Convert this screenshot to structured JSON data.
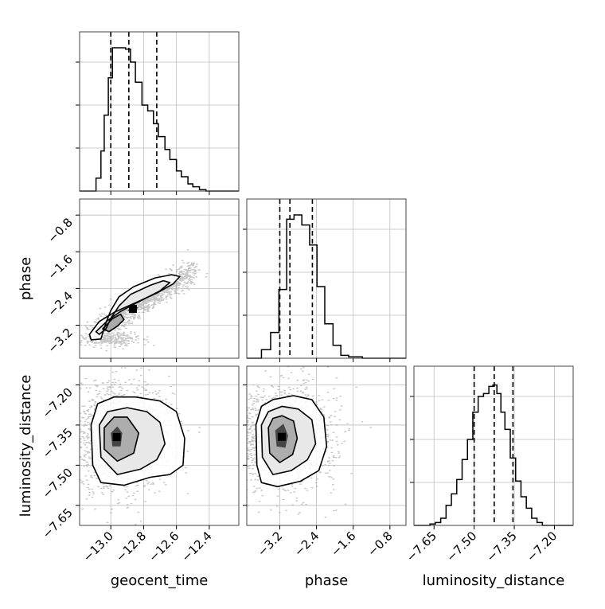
{
  "chart_data": {
    "type": "corner",
    "parameters": [
      "geocent_time",
      "phase",
      "luminosity_distance"
    ],
    "axis_labels": {
      "x": [
        "geocent_time",
        "phase",
        "luminosity_distance"
      ],
      "y": [
        "phase",
        "luminosity_distance"
      ]
    },
    "ranges": {
      "geocent_time": [
        -13.19,
        -12.22
      ],
      "phase": [
        -3.92,
        -0.45
      ],
      "luminosity_distance": [
        -7.725,
        -7.13
      ]
    },
    "ticks": {
      "geocent_time": {
        "values": [
          -13.0,
          -12.8,
          -12.6,
          -12.4
        ],
        "labels": [
          "−13.0",
          "−12.8",
          "−12.6",
          "−12.4"
        ]
      },
      "phase": {
        "values": [
          -3.2,
          -2.4,
          -1.6,
          -0.8
        ],
        "labels": [
          "−3.2",
          "−2.4",
          "−1.6",
          "−0.8"
        ]
      },
      "luminosity_distance": {
        "values": [
          -7.65,
          -7.5,
          -7.35,
          -7.2
        ],
        "labels": [
          "−7.65",
          "−7.50",
          "−7.35",
          "−7.20"
        ]
      }
    },
    "quantiles": {
      "geocent_time": [
        -13.0,
        -12.89,
        -12.72
      ],
      "phase": [
        -3.2,
        -2.98,
        -2.49
      ],
      "luminosity_distance": [
        -7.5,
        -7.425,
        -7.355
      ]
    },
    "histograms": {
      "geocent_time": {
        "bin_edges": [
          -13.19,
          -13.09,
          -13.06,
          -13.04,
          -13.015,
          -12.99,
          -12.96,
          -12.91,
          -12.88,
          -12.85,
          -12.81,
          -12.775,
          -12.74,
          -12.71,
          -12.67,
          -12.64,
          -12.6,
          -12.57,
          -12.53,
          -12.5,
          -12.46,
          -12.42,
          -12.22
        ],
        "heights": [
          0.0,
          0.09,
          0.28,
          0.53,
          0.79,
          1.0,
          1.0,
          0.99,
          0.9,
          0.76,
          0.6,
          0.56,
          0.47,
          0.38,
          0.29,
          0.22,
          0.14,
          0.1,
          0.05,
          0.03,
          0.01,
          0.0
        ]
      },
      "phase": {
        "bin_edges": [
          -3.92,
          -3.6,
          -3.4,
          -3.22,
          -3.05,
          -2.89,
          -2.72,
          -2.55,
          -2.39,
          -2.22,
          -2.04,
          -1.87,
          -1.7,
          -1.4,
          -0.45
        ],
        "heights": [
          0.0,
          0.06,
          0.18,
          0.48,
          0.97,
          1.0,
          0.93,
          0.79,
          0.5,
          0.24,
          0.09,
          0.02,
          0.01,
          0.0
        ]
      },
      "luminosity_distance": {
        "bin_edges": [
          -7.725,
          -7.665,
          -7.645,
          -7.625,
          -7.605,
          -7.585,
          -7.565,
          -7.545,
          -7.525,
          -7.505,
          -7.485,
          -7.465,
          -7.445,
          -7.43,
          -7.415,
          -7.4,
          -7.385,
          -7.365,
          -7.345,
          -7.325,
          -7.305,
          -7.285,
          -7.265,
          -7.245,
          -7.13
        ],
        "heights": [
          0.0,
          0.01,
          0.02,
          0.05,
          0.14,
          0.22,
          0.32,
          0.46,
          0.6,
          0.79,
          0.9,
          0.92,
          0.97,
          0.98,
          0.92,
          0.79,
          0.67,
          0.47,
          0.31,
          0.2,
          0.12,
          0.05,
          0.02,
          0.0
        ]
      }
    },
    "density_pairs": [
      {
        "x": "geocent_time",
        "y": "phase",
        "contours": [
          [
            [
              -13.13,
              -3.4
            ],
            [
              -13.07,
              -3.12
            ],
            [
              -12.98,
              -2.92
            ],
            [
              -12.85,
              -2.71
            ],
            [
              -12.72,
              -2.5
            ],
            [
              -12.62,
              -2.3
            ],
            [
              -12.58,
              -2.14
            ],
            [
              -12.63,
              -2.1
            ],
            [
              -12.73,
              -2.17
            ],
            [
              -12.86,
              -2.36
            ],
            [
              -12.95,
              -2.58
            ],
            [
              -13.0,
              -2.88
            ],
            [
              -13.03,
              -3.15
            ],
            [
              -13.06,
              -3.5
            ],
            [
              -13.12,
              -3.52
            ]
          ],
          [
            [
              -13.09,
              -3.34
            ],
            [
              -13.02,
              -3.1
            ],
            [
              -12.94,
              -2.9
            ],
            [
              -12.82,
              -2.67
            ],
            [
              -12.7,
              -2.45
            ],
            [
              -12.64,
              -2.27
            ],
            [
              -12.68,
              -2.23
            ],
            [
              -12.76,
              -2.33
            ],
            [
              -12.88,
              -2.53
            ],
            [
              -12.95,
              -2.78
            ],
            [
              -13.0,
              -3.05
            ],
            [
              -13.03,
              -3.28
            ],
            [
              -13.07,
              -3.4
            ]
          ],
          [
            [
              -13.05,
              -3.28
            ],
            [
              -12.99,
              -3.06
            ],
            [
              -12.94,
              -2.96
            ],
            [
              -12.92,
              -3.08
            ],
            [
              -12.96,
              -3.22
            ],
            [
              -13.01,
              -3.34
            ]
          ],
          [
            [
              -12.9,
              -2.88
            ],
            [
              -12.87,
              -2.79
            ],
            [
              -12.83,
              -2.81
            ],
            [
              -12.86,
              -2.9
            ]
          ]
        ]
      },
      {
        "x": "geocent_time",
        "y": "luminosity_distance",
        "contours": [
          [
            [
              -13.12,
              -7.35
            ],
            [
              -13.11,
              -7.5
            ],
            [
              -13.06,
              -7.565
            ],
            [
              -12.92,
              -7.575
            ],
            [
              -12.76,
              -7.545
            ],
            [
              -12.64,
              -7.535
            ],
            [
              -12.56,
              -7.5
            ],
            [
              -12.55,
              -7.4
            ],
            [
              -12.6,
              -7.3
            ],
            [
              -12.7,
              -7.26
            ],
            [
              -12.85,
              -7.245
            ],
            [
              -12.98,
              -7.245
            ],
            [
              -13.08,
              -7.27
            ]
          ],
          [
            [
              -13.07,
              -7.35
            ],
            [
              -13.06,
              -7.47
            ],
            [
              -12.96,
              -7.535
            ],
            [
              -12.82,
              -7.515
            ],
            [
              -12.72,
              -7.48
            ],
            [
              -12.67,
              -7.42
            ],
            [
              -12.7,
              -7.34
            ],
            [
              -12.78,
              -7.3
            ],
            [
              -12.9,
              -7.285
            ],
            [
              -13.02,
              -7.3
            ]
          ],
          [
            [
              -13.04,
              -7.36
            ],
            [
              -13.04,
              -7.44
            ],
            [
              -12.96,
              -7.485
            ],
            [
              -12.86,
              -7.455
            ],
            [
              -12.83,
              -7.38
            ],
            [
              -12.9,
              -7.32
            ],
            [
              -12.98,
              -7.32
            ]
          ],
          [
            [
              -13.0,
              -7.38
            ],
            [
              -12.99,
              -7.43
            ],
            [
              -12.94,
              -7.43
            ],
            [
              -12.93,
              -7.38
            ],
            [
              -12.96,
              -7.355
            ]
          ]
        ]
      },
      {
        "x": "phase",
        "y": "luminosity_distance",
        "contours": [
          [
            [
              -3.72,
              -7.35
            ],
            [
              -3.7,
              -7.5
            ],
            [
              -3.6,
              -7.565
            ],
            [
              -3.25,
              -7.58
            ],
            [
              -2.75,
              -7.56
            ],
            [
              -2.35,
              -7.52
            ],
            [
              -2.18,
              -7.43
            ],
            [
              -2.24,
              -7.32
            ],
            [
              -2.5,
              -7.255
            ],
            [
              -2.9,
              -7.24
            ],
            [
              -3.35,
              -7.255
            ],
            [
              -3.6,
              -7.28
            ]
          ],
          [
            [
              -3.6,
              -7.35
            ],
            [
              -3.58,
              -7.47
            ],
            [
              -3.35,
              -7.535
            ],
            [
              -2.95,
              -7.52
            ],
            [
              -2.6,
              -7.48
            ],
            [
              -2.42,
              -7.42
            ],
            [
              -2.5,
              -7.33
            ],
            [
              -2.8,
              -7.29
            ],
            [
              -3.15,
              -7.28
            ],
            [
              -3.45,
              -7.3
            ]
          ],
          [
            [
              -3.45,
              -7.36
            ],
            [
              -3.42,
              -7.455
            ],
            [
              -3.2,
              -7.49
            ],
            [
              -2.92,
              -7.46
            ],
            [
              -2.82,
              -7.4
            ],
            [
              -2.9,
              -7.335
            ],
            [
              -3.15,
              -7.315
            ],
            [
              -3.35,
              -7.325
            ]
          ],
          [
            [
              -3.3,
              -7.37
            ],
            [
              -3.27,
              -7.43
            ],
            [
              -3.08,
              -7.435
            ],
            [
              -3.02,
              -7.39
            ],
            [
              -3.12,
              -7.345
            ]
          ]
        ]
      }
    ]
  }
}
